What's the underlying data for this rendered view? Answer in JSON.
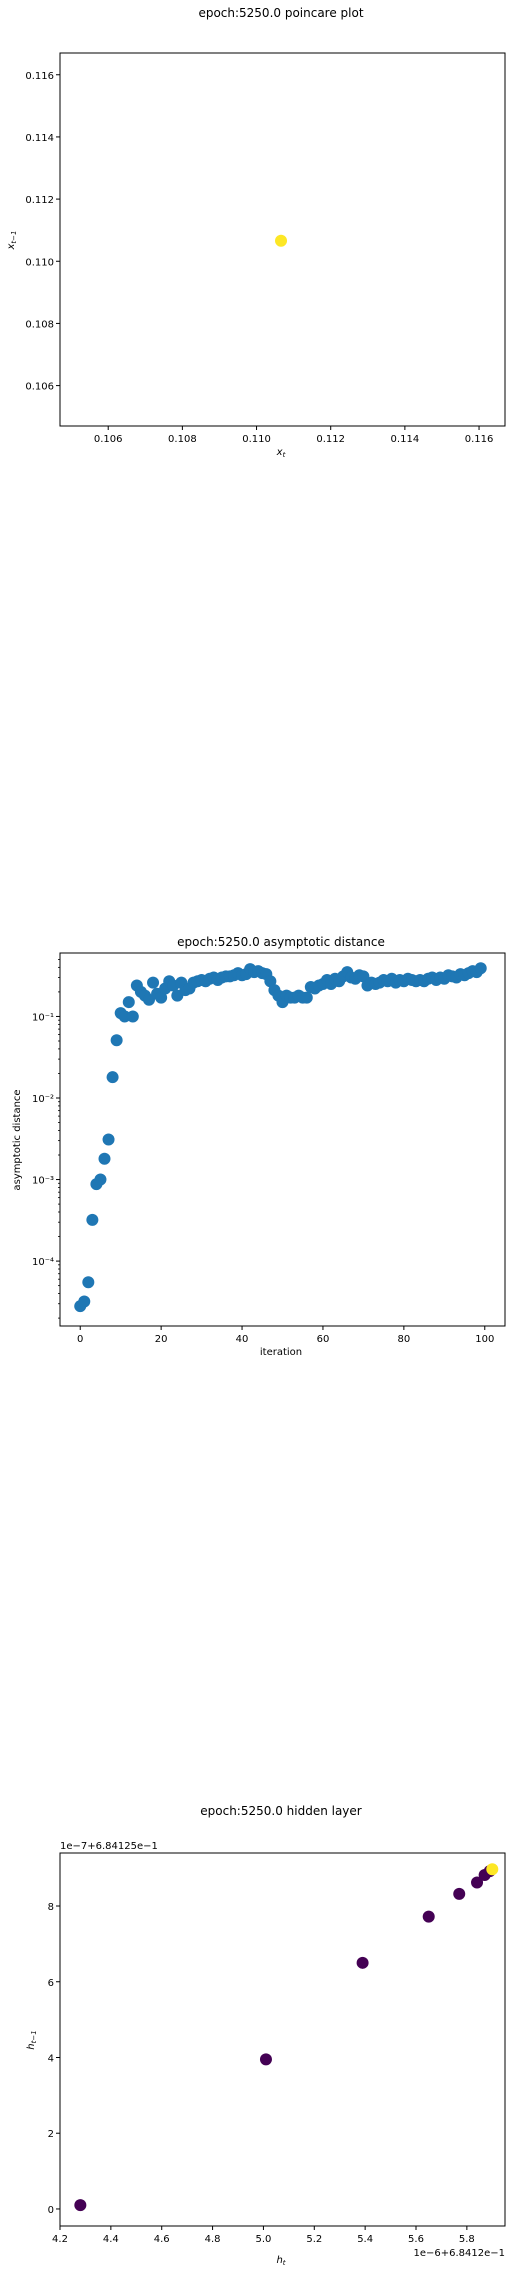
{
  "chart_data": [
    {
      "type": "scatter",
      "title": "epoch:5250.0 poincare plot",
      "xlabel": "x_t",
      "ylabel": "x_{t-1}",
      "xlim": [
        0.1047,
        0.1167
      ],
      "ylim": [
        0.1047,
        0.1167
      ],
      "xticks": [
        "0.106",
        "0.108",
        "0.110",
        "0.112",
        "0.114",
        "0.116"
      ],
      "yticks": [
        "0.106",
        "0.108",
        "0.110",
        "0.112",
        "0.114",
        "0.116"
      ],
      "x": [
        0.11066
      ],
      "y": [
        0.11066
      ],
      "point_color": "#fde725",
      "grid": false
    },
    {
      "type": "scatter",
      "title": "epoch:5250.0 asymptotic distance",
      "xlabel": "iteration",
      "ylabel": "asymptotic distance",
      "yscale": "log",
      "xlim": [
        -5,
        105
      ],
      "ylim": [
        1.6e-05,
        0.6
      ],
      "xticks": [
        "0",
        "20",
        "40",
        "60",
        "80",
        "100"
      ],
      "yticks": [
        "10⁻⁴",
        "10⁻³",
        "10⁻²",
        "10⁻¹"
      ],
      "x": [
        0,
        1,
        2,
        3,
        4,
        5,
        6,
        7,
        8,
        9,
        10,
        11,
        12,
        13,
        14,
        15,
        16,
        17,
        18,
        19,
        20,
        21,
        22,
        23,
        24,
        25,
        26,
        27,
        28,
        29,
        30,
        31,
        32,
        33,
        34,
        35,
        36,
        37,
        38,
        39,
        40,
        41,
        42,
        43,
        44,
        45,
        46,
        47,
        48,
        49,
        50,
        51,
        52,
        53,
        54,
        55,
        56,
        57,
        58,
        59,
        60,
        61,
        62,
        63,
        64,
        65,
        66,
        67,
        68,
        69,
        70,
        71,
        72,
        73,
        74,
        75,
        76,
        77,
        78,
        79,
        80,
        81,
        82,
        83,
        84,
        85,
        86,
        87,
        88,
        89,
        90,
        91,
        92,
        93,
        94,
        95,
        96,
        97,
        98,
        99
      ],
      "y": [
        2.8e-05,
        3.2e-05,
        5.5e-05,
        0.00032,
        0.00088,
        0.001,
        0.0018,
        0.0031,
        0.018,
        0.051,
        0.11,
        0.1,
        0.15,
        0.1,
        0.24,
        0.2,
        0.18,
        0.16,
        0.26,
        0.19,
        0.17,
        0.22,
        0.27,
        0.24,
        0.18,
        0.26,
        0.21,
        0.22,
        0.26,
        0.27,
        0.28,
        0.27,
        0.29,
        0.3,
        0.28,
        0.3,
        0.31,
        0.31,
        0.32,
        0.34,
        0.32,
        0.33,
        0.38,
        0.35,
        0.36,
        0.34,
        0.33,
        0.27,
        0.21,
        0.18,
        0.15,
        0.18,
        0.17,
        0.17,
        0.18,
        0.17,
        0.17,
        0.23,
        0.22,
        0.24,
        0.25,
        0.28,
        0.25,
        0.29,
        0.27,
        0.31,
        0.35,
        0.3,
        0.29,
        0.32,
        0.31,
        0.24,
        0.26,
        0.25,
        0.26,
        0.28,
        0.27,
        0.29,
        0.26,
        0.28,
        0.27,
        0.29,
        0.28,
        0.27,
        0.28,
        0.27,
        0.29,
        0.3,
        0.28,
        0.3,
        0.29,
        0.32,
        0.31,
        0.3,
        0.33,
        0.32,
        0.34,
        0.36,
        0.35,
        0.39
      ],
      "point_color": "#1f77b4",
      "grid": false
    },
    {
      "type": "scatter",
      "title": "epoch:5250.0 hidden layer",
      "xlabel": "h_t",
      "ylabel": "h_{t-1}",
      "x_offset_text": "1e−6+6.8412e−1",
      "y_offset_text": "1e−7+6.84125e−1",
      "xlim": [
        4.2,
        5.95
      ],
      "ylim": [
        -0.45,
        9.4
      ],
      "xticks": [
        "4.2",
        "4.4",
        "4.6",
        "4.8",
        "5.0",
        "5.2",
        "5.4",
        "5.6",
        "5.8"
      ],
      "yticks": [
        "0",
        "2",
        "4",
        "6",
        "8"
      ],
      "x": [
        4.28,
        5.01,
        5.39,
        5.65,
        5.77,
        5.84,
        5.87,
        5.89,
        5.9
      ],
      "y": [
        0.1,
        3.95,
        6.5,
        7.72,
        8.32,
        8.62,
        8.82,
        8.92,
        8.97
      ],
      "colors": [
        "#440154",
        "#440154",
        "#440154",
        "#440154",
        "#440154",
        "#440154",
        "#440154",
        "#440154",
        "#fde725"
      ],
      "grid": false
    }
  ]
}
